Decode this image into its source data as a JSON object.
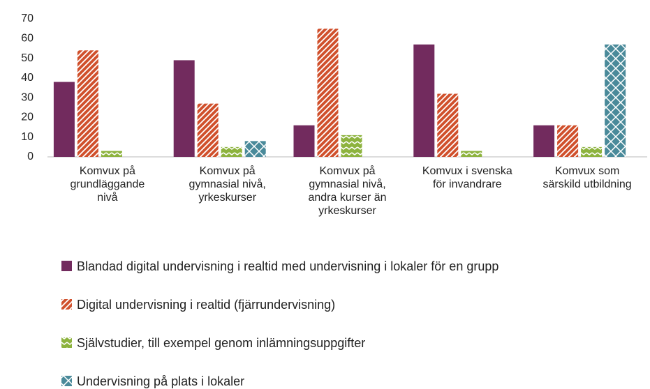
{
  "chart_data": {
    "type": "bar",
    "categories": [
      "Komvux på\ngrundläggande\nnivå",
      "Komvux på\ngymnasial nivå,\nyrkeskurser",
      "Komvux på\ngymnasial nivå,\nandra kurser än\nyrkeskurser",
      "Komvux i svenska\nför invandrare",
      "Komvux som\nsärskild utbildning"
    ],
    "series": [
      {
        "name": "Blandad digital undervisning i realtid med undervisning i lokaler för en grupp",
        "color": "#722b5e",
        "pattern": "solid",
        "values": [
          38,
          49,
          16,
          57,
          16
        ]
      },
      {
        "name": "Digital undervisning i realtid (fjärrundervisning)",
        "color": "#d0502c",
        "pattern": "diagonal",
        "values": [
          54,
          27,
          65,
          32,
          16
        ]
      },
      {
        "name": "Självstudier, till exempel genom inlämningsuppgifter",
        "color": "#8db33e",
        "pattern": "zigzag",
        "values": [
          3,
          5,
          11,
          3,
          5
        ]
      },
      {
        "name": "Undervisning på plats i lokaler",
        "color": "#4a8a9a",
        "pattern": "crosshatch",
        "values": [
          0,
          8,
          0,
          0,
          57
        ]
      }
    ],
    "ylim": [
      0,
      70
    ],
    "yticks": [
      0,
      10,
      20,
      30,
      40,
      50,
      60,
      70
    ],
    "grid": false
  }
}
